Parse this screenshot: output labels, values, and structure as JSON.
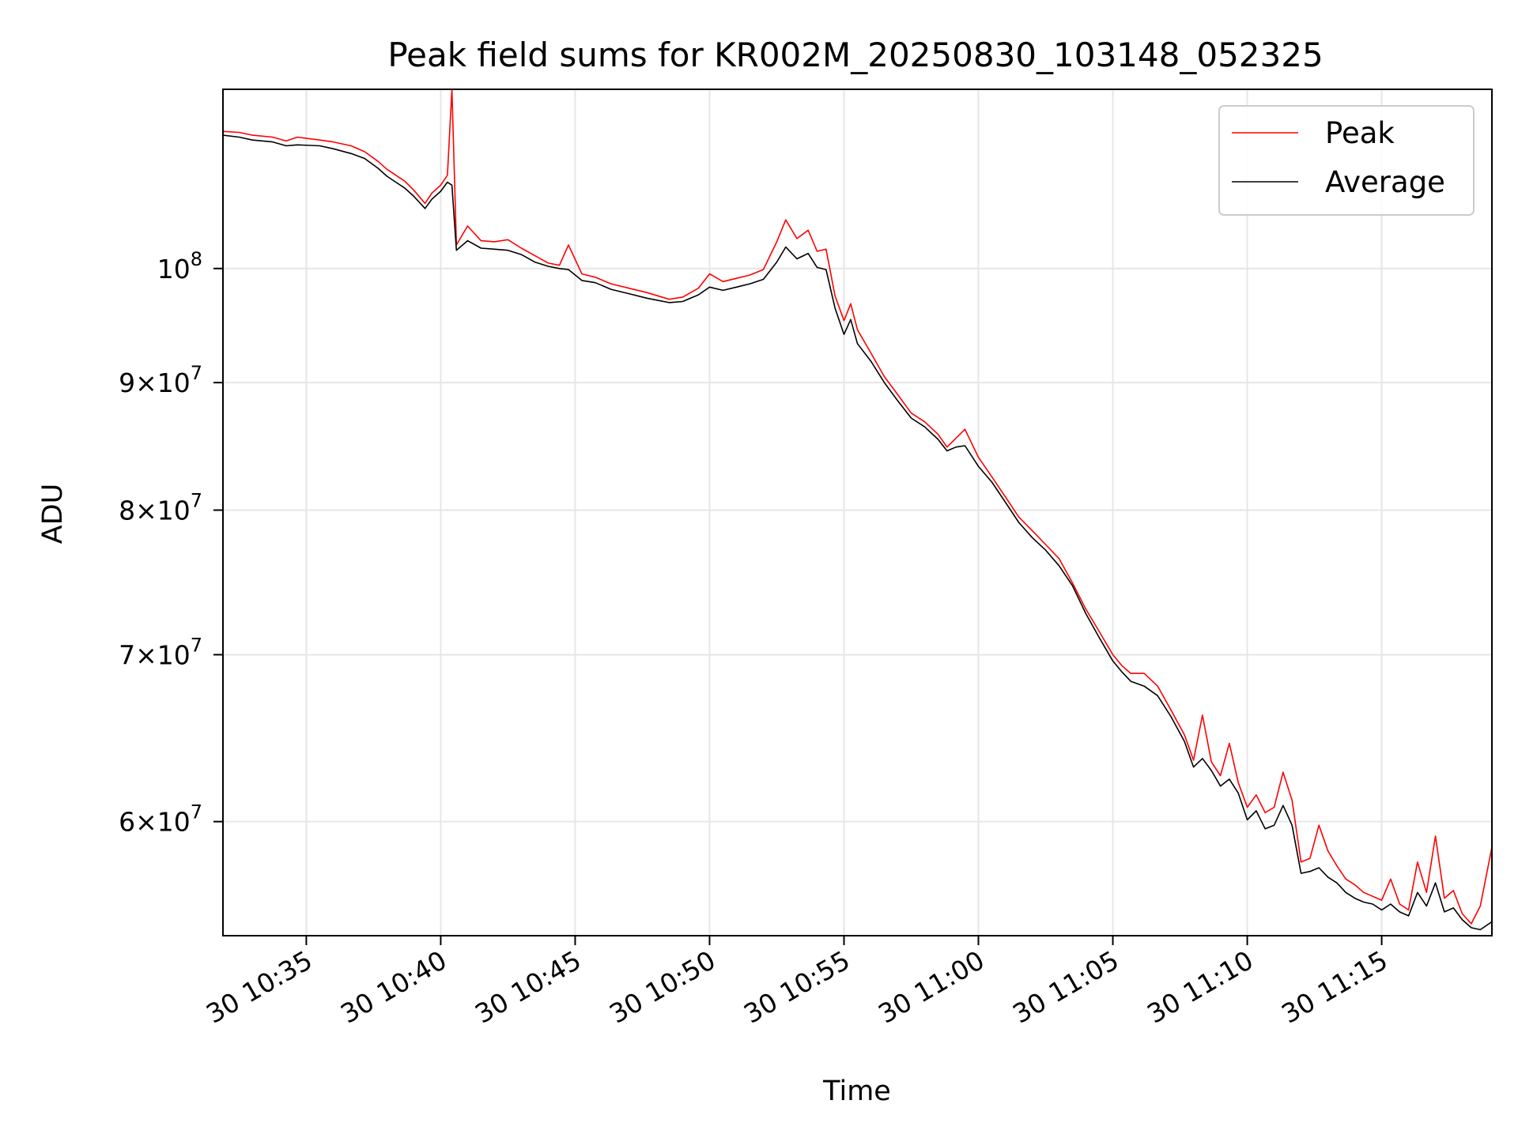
{
  "chart_data": {
    "type": "line",
    "title": "Peak field sums for KR002M_20250830_103148_052325",
    "xlabel": "Time",
    "ylabel": "ADU",
    "yscale": "log",
    "ylim": [
      54000000,
      118000000
    ],
    "xlim": [
      "10:31:54",
      "11:19:06"
    ],
    "grid": true,
    "legend_position": "top-right",
    "x_ticks": [
      "10:35",
      "10:40",
      "10:45",
      "10:50",
      "10:55",
      "11:00",
      "11:05",
      "11:10",
      "11:15"
    ],
    "x_tick_labels": [
      "30 10:35",
      "30 10:40",
      "30 10:45",
      "30 10:50",
      "30 10:55",
      "30 11:00",
      "30 11:05",
      "30 11:10",
      "30 11:15"
    ],
    "y_ticks": [
      {
        "value": 100000000,
        "base": "10",
        "exp": "8"
      },
      {
        "value": 90000000,
        "base": "9×10",
        "exp": "7"
      },
      {
        "value": 80000000,
        "base": "8×10",
        "exp": "7"
      },
      {
        "value": 70000000,
        "base": "7×10",
        "exp": "7"
      },
      {
        "value": 60000000,
        "base": "6×10",
        "exp": "7"
      }
    ],
    "series": [
      {
        "name": "Peak",
        "color": "#ff0000",
        "points": [
          [
            "10:31:54",
            113500000
          ],
          [
            "10:32:30",
            113400000
          ],
          [
            "10:33:00",
            113100000
          ],
          [
            "10:33:45",
            112900000
          ],
          [
            "10:34:15",
            112500000
          ],
          [
            "10:34:40",
            112900000
          ],
          [
            "10:35:30",
            112600000
          ],
          [
            "10:36:00",
            112400000
          ],
          [
            "10:36:40",
            112000000
          ],
          [
            "10:37:10",
            111400000
          ],
          [
            "10:37:40",
            110400000
          ],
          [
            "10:38:00",
            109600000
          ],
          [
            "10:38:40",
            108400000
          ],
          [
            "10:39:00",
            107500000
          ],
          [
            "10:39:25",
            106200000
          ],
          [
            "10:39:40",
            107200000
          ],
          [
            "10:40:00",
            108000000
          ],
          [
            "10:40:15",
            109000000
          ],
          [
            "10:40:25",
            118000000
          ],
          [
            "10:40:35",
            102200000
          ],
          [
            "10:41:00",
            104000000
          ],
          [
            "10:41:30",
            102600000
          ],
          [
            "10:42:00",
            102500000
          ],
          [
            "10:42:30",
            102700000
          ],
          [
            "10:43:00",
            101900000
          ],
          [
            "10:43:30",
            101200000
          ],
          [
            "10:44:00",
            100500000
          ],
          [
            "10:44:25",
            100300000
          ],
          [
            "10:44:45",
            102200000
          ],
          [
            "10:45:15",
            99500000
          ],
          [
            "10:45:45",
            99200000
          ],
          [
            "10:46:20",
            98600000
          ],
          [
            "10:47:00",
            98200000
          ],
          [
            "10:47:40",
            97800000
          ],
          [
            "10:48:30",
            97200000
          ],
          [
            "10:49:00",
            97400000
          ],
          [
            "10:49:35",
            98200000
          ],
          [
            "10:50:00",
            99500000
          ],
          [
            "10:50:30",
            98800000
          ],
          [
            "10:51:00",
            99100000
          ],
          [
            "10:51:30",
            99400000
          ],
          [
            "10:52:00",
            99900000
          ],
          [
            "10:52:30",
            102500000
          ],
          [
            "10:52:50",
            104600000
          ],
          [
            "10:53:15",
            102800000
          ],
          [
            "10:53:40",
            103600000
          ],
          [
            "10:54:00",
            101600000
          ],
          [
            "10:54:20",
            101800000
          ],
          [
            "10:54:40",
            97500000
          ],
          [
            "10:55:00",
            95300000
          ],
          [
            "10:55:15",
            96800000
          ],
          [
            "10:55:30",
            94500000
          ],
          [
            "10:56:00",
            92500000
          ],
          [
            "10:56:30",
            90500000
          ],
          [
            "10:57:00",
            89000000
          ],
          [
            "10:57:30",
            87500000
          ],
          [
            "10:58:00",
            86800000
          ],
          [
            "10:58:30",
            85800000
          ],
          [
            "10:58:50",
            84800000
          ],
          [
            "10:59:10",
            85500000
          ],
          [
            "10:59:30",
            86200000
          ],
          [
            "11:00:00",
            84000000
          ],
          [
            "11:00:30",
            82500000
          ],
          [
            "11:01:00",
            81000000
          ],
          [
            "11:01:30",
            79500000
          ],
          [
            "11:02:00",
            78500000
          ],
          [
            "11:02:30",
            77500000
          ],
          [
            "11:03:00",
            76500000
          ],
          [
            "11:03:30",
            74800000
          ],
          [
            "11:04:00",
            73000000
          ],
          [
            "11:04:30",
            71500000
          ],
          [
            "11:05:00",
            70000000
          ],
          [
            "11:05:20",
            69300000
          ],
          [
            "11:05:40",
            68800000
          ],
          [
            "11:06:10",
            68800000
          ],
          [
            "11:06:40",
            68000000
          ],
          [
            "11:07:10",
            66500000
          ],
          [
            "11:07:40",
            65000000
          ],
          [
            "11:08:00",
            63500000
          ],
          [
            "11:08:20",
            66200000
          ],
          [
            "11:08:40",
            63400000
          ],
          [
            "11:09:00",
            62600000
          ],
          [
            "11:09:20",
            64500000
          ],
          [
            "11:09:40",
            62200000
          ],
          [
            "11:10:00",
            60800000
          ],
          [
            "11:10:20",
            61500000
          ],
          [
            "11:10:40",
            60500000
          ],
          [
            "11:11:00",
            60800000
          ],
          [
            "11:11:20",
            62800000
          ],
          [
            "11:11:40",
            61200000
          ],
          [
            "11:12:00",
            57800000
          ],
          [
            "11:12:20",
            58000000
          ],
          [
            "11:12:40",
            59800000
          ],
          [
            "11:13:00",
            58400000
          ],
          [
            "11:13:20",
            57600000
          ],
          [
            "11:13:40",
            56900000
          ],
          [
            "11:14:00",
            56600000
          ],
          [
            "11:14:20",
            56200000
          ],
          [
            "11:14:40",
            56000000
          ],
          [
            "11:15:00",
            55800000
          ],
          [
            "11:15:20",
            56900000
          ],
          [
            "11:15:40",
            55600000
          ],
          [
            "11:16:00",
            55300000
          ],
          [
            "11:16:20",
            57800000
          ],
          [
            "11:16:40",
            56200000
          ],
          [
            "11:17:00",
            59200000
          ],
          [
            "11:17:20",
            55900000
          ],
          [
            "11:17:40",
            56300000
          ],
          [
            "11:18:00",
            55100000
          ],
          [
            "11:18:20",
            54600000
          ],
          [
            "11:18:40",
            55500000
          ],
          [
            "11:19:06",
            58600000
          ]
        ]
      },
      {
        "name": "Average",
        "color": "#000000",
        "points": [
          [
            "10:31:54",
            113100000
          ],
          [
            "10:32:30",
            112900000
          ],
          [
            "10:33:00",
            112600000
          ],
          [
            "10:33:45",
            112400000
          ],
          [
            "10:34:15",
            112000000
          ],
          [
            "10:34:40",
            112100000
          ],
          [
            "10:35:30",
            112000000
          ],
          [
            "10:36:00",
            111700000
          ],
          [
            "10:36:40",
            111200000
          ],
          [
            "10:37:10",
            110700000
          ],
          [
            "10:37:40",
            109700000
          ],
          [
            "10:38:00",
            108900000
          ],
          [
            "10:38:40",
            107700000
          ],
          [
            "10:39:00",
            106900000
          ],
          [
            "10:39:25",
            105700000
          ],
          [
            "10:39:40",
            106600000
          ],
          [
            "10:40:00",
            107400000
          ],
          [
            "10:40:15",
            108300000
          ],
          [
            "10:40:25",
            108000000
          ],
          [
            "10:40:35",
            101700000
          ],
          [
            "10:41:00",
            102600000
          ],
          [
            "10:41:30",
            101900000
          ],
          [
            "10:42:00",
            101800000
          ],
          [
            "10:42:30",
            101700000
          ],
          [
            "10:43:00",
            101300000
          ],
          [
            "10:43:30",
            100600000
          ],
          [
            "10:44:00",
            100200000
          ],
          [
            "10:44:25",
            100000000
          ],
          [
            "10:44:45",
            99900000
          ],
          [
            "10:45:15",
            98900000
          ],
          [
            "10:45:45",
            98700000
          ],
          [
            "10:46:20",
            98100000
          ],
          [
            "10:47:00",
            97700000
          ],
          [
            "10:47:40",
            97300000
          ],
          [
            "10:48:30",
            96900000
          ],
          [
            "10:49:00",
            97000000
          ],
          [
            "10:49:35",
            97600000
          ],
          [
            "10:50:00",
            98300000
          ],
          [
            "10:50:30",
            98000000
          ],
          [
            "10:51:00",
            98300000
          ],
          [
            "10:51:30",
            98600000
          ],
          [
            "10:52:00",
            99000000
          ],
          [
            "10:52:30",
            100600000
          ],
          [
            "10:52:50",
            102000000
          ],
          [
            "10:53:15",
            100900000
          ],
          [
            "10:53:40",
            101400000
          ],
          [
            "10:54:00",
            100100000
          ],
          [
            "10:54:20",
            99900000
          ],
          [
            "10:54:40",
            96400000
          ],
          [
            "10:55:00",
            94100000
          ],
          [
            "10:55:15",
            95400000
          ],
          [
            "10:55:30",
            93300000
          ],
          [
            "10:56:00",
            91800000
          ],
          [
            "10:56:30",
            90000000
          ],
          [
            "10:57:00",
            88500000
          ],
          [
            "10:57:30",
            87100000
          ],
          [
            "10:58:00",
            86400000
          ],
          [
            "10:58:30",
            85400000
          ],
          [
            "10:58:50",
            84500000
          ],
          [
            "10:59:10",
            84800000
          ],
          [
            "10:59:30",
            84900000
          ],
          [
            "11:00:00",
            83300000
          ],
          [
            "11:00:30",
            82100000
          ],
          [
            "11:01:00",
            80600000
          ],
          [
            "11:01:30",
            79100000
          ],
          [
            "11:02:00",
            78000000
          ],
          [
            "11:02:30",
            77100000
          ],
          [
            "11:03:00",
            76000000
          ],
          [
            "11:03:30",
            74600000
          ],
          [
            "11:04:00",
            72700000
          ],
          [
            "11:04:30",
            71100000
          ],
          [
            "11:05:00",
            69600000
          ],
          [
            "11:05:20",
            68900000
          ],
          [
            "11:05:40",
            68300000
          ],
          [
            "11:06:10",
            68000000
          ],
          [
            "11:06:40",
            67400000
          ],
          [
            "11:07:10",
            66100000
          ],
          [
            "11:07:40",
            64600000
          ],
          [
            "11:08:00",
            63100000
          ],
          [
            "11:08:20",
            63600000
          ],
          [
            "11:08:40",
            62900000
          ],
          [
            "11:09:00",
            62000000
          ],
          [
            "11:09:20",
            62400000
          ],
          [
            "11:09:40",
            61600000
          ],
          [
            "11:10:00",
            60100000
          ],
          [
            "11:10:20",
            60600000
          ],
          [
            "11:10:40",
            59600000
          ],
          [
            "11:11:00",
            59800000
          ],
          [
            "11:11:20",
            60900000
          ],
          [
            "11:11:40",
            59800000
          ],
          [
            "11:12:00",
            57200000
          ],
          [
            "11:12:20",
            57300000
          ],
          [
            "11:12:40",
            57500000
          ],
          [
            "11:13:00",
            57000000
          ],
          [
            "11:13:20",
            56700000
          ],
          [
            "11:13:40",
            56200000
          ],
          [
            "11:14:00",
            55900000
          ],
          [
            "11:14:20",
            55700000
          ],
          [
            "11:14:40",
            55600000
          ],
          [
            "11:15:00",
            55300000
          ],
          [
            "11:15:20",
            55600000
          ],
          [
            "11:15:40",
            55200000
          ],
          [
            "11:16:00",
            55000000
          ],
          [
            "11:16:20",
            56200000
          ],
          [
            "11:16:40",
            55500000
          ],
          [
            "11:17:00",
            56700000
          ],
          [
            "11:17:20",
            55200000
          ],
          [
            "11:17:40",
            55400000
          ],
          [
            "11:18:00",
            54800000
          ],
          [
            "11:18:20",
            54400000
          ],
          [
            "11:18:40",
            54300000
          ],
          [
            "11:19:06",
            54700000
          ]
        ]
      }
    ]
  }
}
